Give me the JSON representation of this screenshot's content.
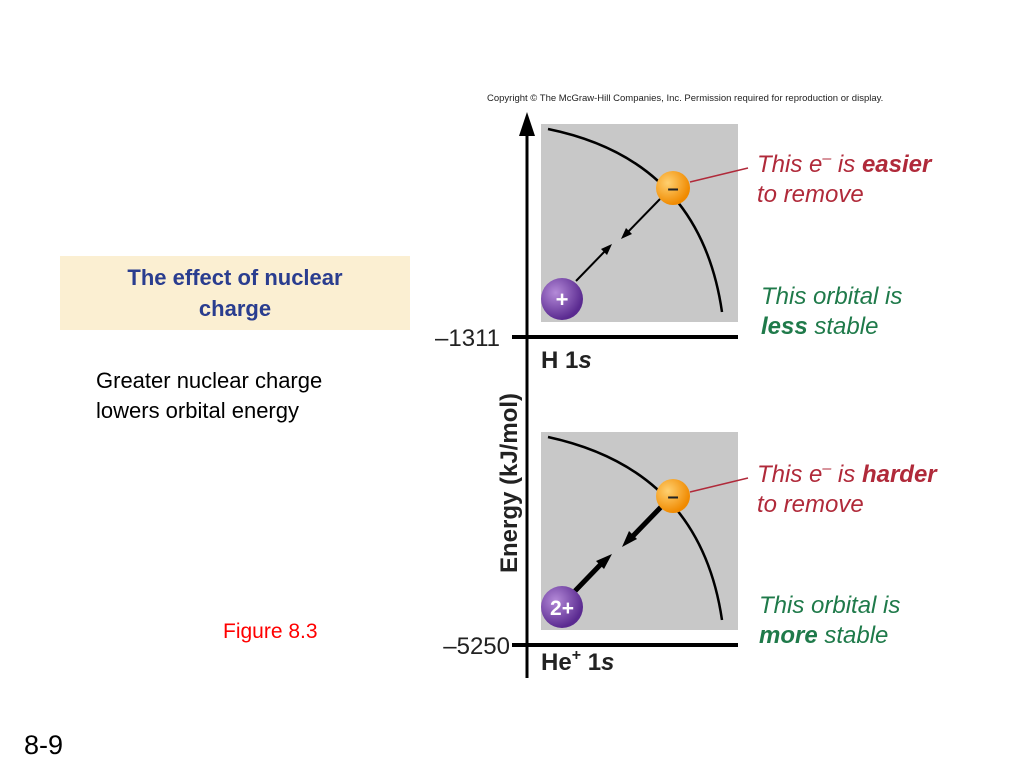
{
  "title": {
    "line1": "The effect of nuclear",
    "line2": "charge"
  },
  "body": {
    "line1": "Greater nuclear charge",
    "line2": "lowers orbital energy"
  },
  "figure_label": "Figure 8.3",
  "slide_number": "8-9",
  "copyright": "Copyright © The McGraw-Hill Companies, Inc. Permission required for reproduction or display.",
  "diagram": {
    "axis_label": "Energy (kJ/mol)",
    "levels": [
      {
        "energy": "–1311",
        "orbital_main": "H 1",
        "orbital_italic": "s",
        "orbital_sup": "",
        "nucleus": "+",
        "electron": "–",
        "callout_top_1a": "This e",
        "callout_top_1sup": "–",
        "callout_top_1b": " is ",
        "callout_top_1bold": "easier",
        "callout_top_2": "to remove",
        "callout_bottom_1": "This orbital is",
        "callout_bottom_2bold": "less",
        "callout_bottom_2": " stable"
      },
      {
        "energy": "–5250",
        "orbital_main": "He",
        "orbital_italic": "s",
        "orbital_sup": "+",
        "orbital_after_sup": " 1",
        "nucleus": "2+",
        "electron": "–",
        "callout_top_1a": "This e",
        "callout_top_1sup": "–",
        "callout_top_1b": " is ",
        "callout_top_1bold": "harder",
        "callout_top_2": "to remove",
        "callout_bottom_1": "This orbital is",
        "callout_bottom_2bold": "more",
        "callout_bottom_2": " stable"
      }
    ],
    "colors": {
      "panel": "#c8c8c8",
      "callout_red": "#b02a3a",
      "callout_green": "#1f7a4a",
      "nucleus": "#6a3aa0",
      "electron": "#f7a21b"
    }
  }
}
